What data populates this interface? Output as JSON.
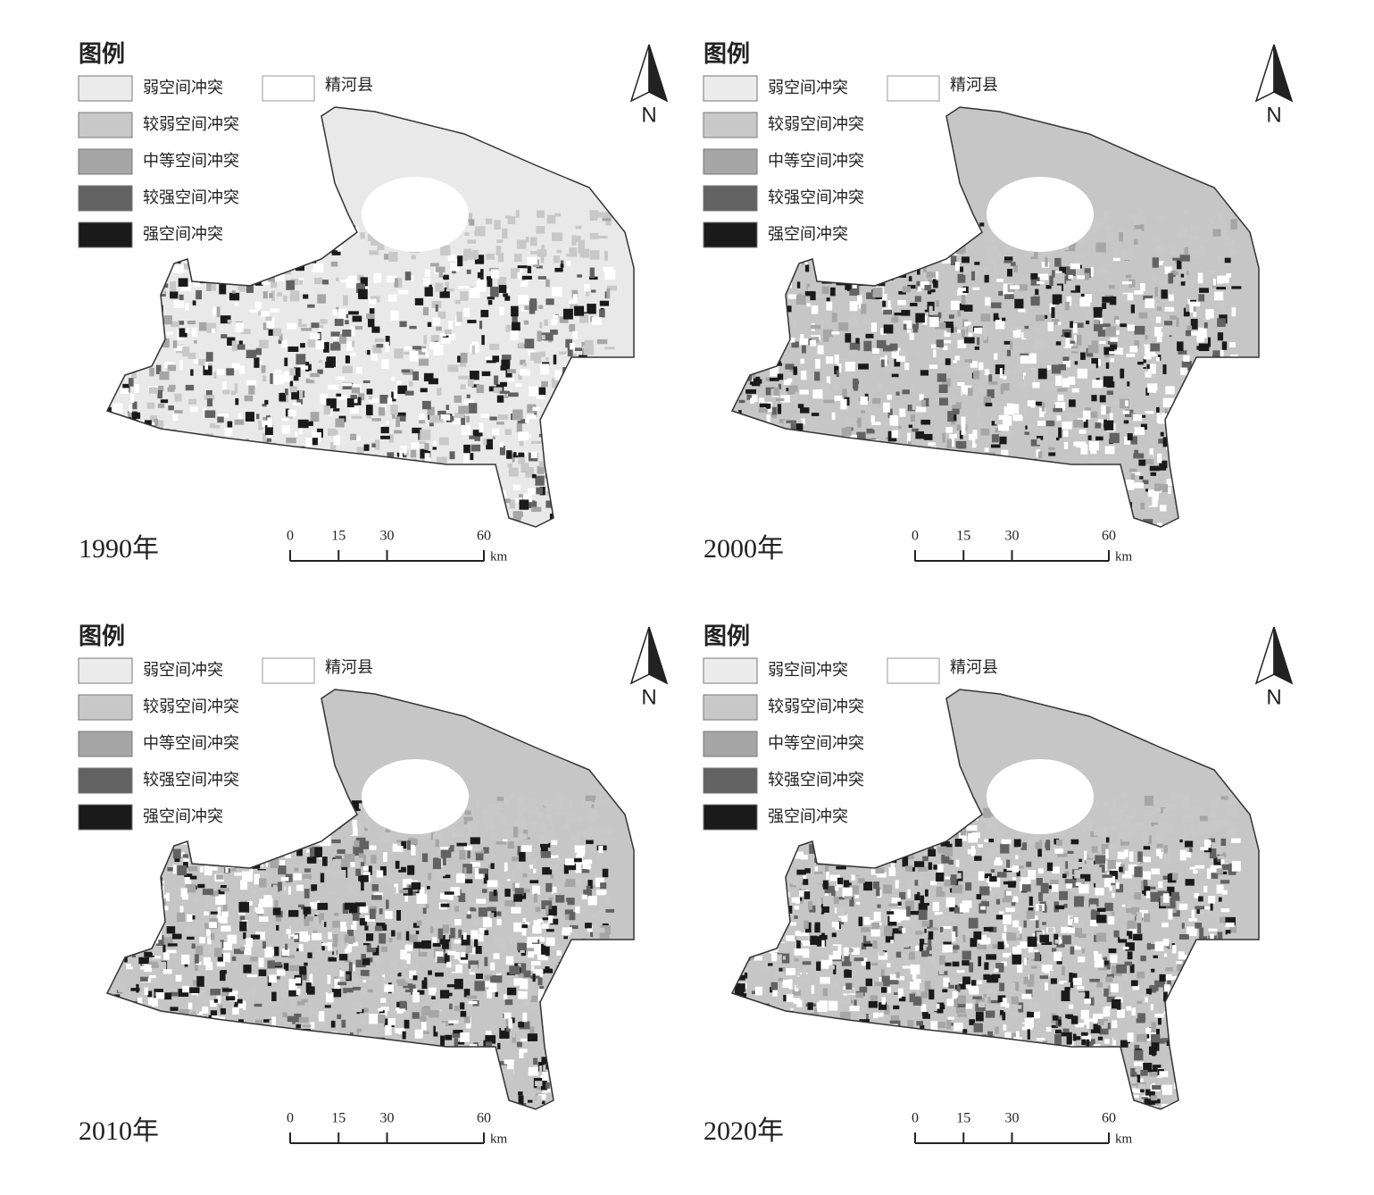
{
  "panels": [
    {
      "year_label": "1990年",
      "legend_title": "图例",
      "legend": [
        {
          "label": "弱空间冲突",
          "color": "#ececec"
        },
        {
          "label": "较弱空间冲突",
          "color": "#c8c8c8"
        },
        {
          "label": "中等空间冲突",
          "color": "#a6a6a6"
        },
        {
          "label": "较强空间冲突",
          "color": "#626262"
        },
        {
          "label": "强空间冲突",
          "color": "#1a1a1a"
        }
      ],
      "boundary_label": "精河县",
      "north": "N",
      "scale": {
        "ticks": [
          0,
          15,
          30,
          60
        ],
        "unit": "km"
      }
    },
    {
      "year_label": "2000年",
      "legend_title": "图例",
      "legend": [
        {
          "label": "弱空间冲突",
          "color": "#ececec"
        },
        {
          "label": "较弱空间冲突",
          "color": "#c8c8c8"
        },
        {
          "label": "中等空间冲突",
          "color": "#a6a6a6"
        },
        {
          "label": "较强空间冲突",
          "color": "#626262"
        },
        {
          "label": "强空间冲突",
          "color": "#1a1a1a"
        }
      ],
      "boundary_label": "精河县",
      "north": "N",
      "scale": {
        "ticks": [
          0,
          15,
          30,
          60
        ],
        "unit": "km"
      }
    },
    {
      "year_label": "2010年",
      "legend_title": "图例",
      "legend": [
        {
          "label": "弱空间冲突",
          "color": "#ececec"
        },
        {
          "label": "较弱空间冲突",
          "color": "#c8c8c8"
        },
        {
          "label": "中等空间冲突",
          "color": "#a6a6a6"
        },
        {
          "label": "较强空间冲突",
          "color": "#626262"
        },
        {
          "label": "强空间冲突",
          "color": "#1a1a1a"
        }
      ],
      "boundary_label": "精河县",
      "north": "N",
      "scale": {
        "ticks": [
          0,
          15,
          30,
          60
        ],
        "unit": "km"
      }
    },
    {
      "year_label": "2020年",
      "legend_title": "图例",
      "legend": [
        {
          "label": "弱空间冲突",
          "color": "#ececec"
        },
        {
          "label": "较弱空间冲突",
          "color": "#c8c8c8"
        },
        {
          "label": "中等空间冲突",
          "color": "#a6a6a6"
        },
        {
          "label": "较强空间冲突",
          "color": "#626262"
        },
        {
          "label": "强空间冲突",
          "color": "#1a1a1a"
        }
      ],
      "boundary_label": "精河县",
      "north": "N",
      "scale": {
        "ticks": [
          0,
          15,
          30,
          60
        ],
        "unit": "km"
      }
    }
  ]
}
